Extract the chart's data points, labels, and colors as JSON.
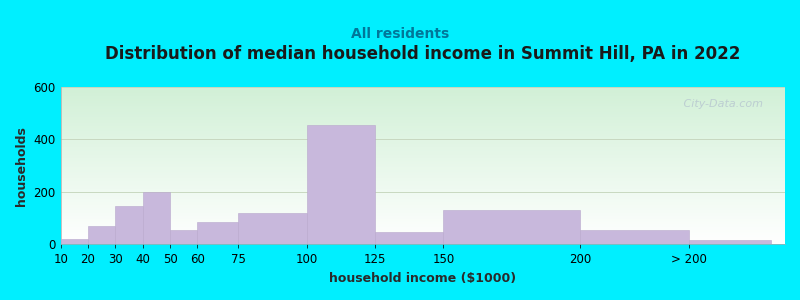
{
  "title": "Distribution of median household income in Summit Hill, PA in 2022",
  "subtitle": "All residents",
  "xlabel": "household income ($1000)",
  "ylabel": "households",
  "background_outer": "#00efff",
  "bar_color": "#c8b8dc",
  "bar_edge_color": "#b8a8cc",
  "yticks": [
    0,
    200,
    400,
    600
  ],
  "ylim": [
    0,
    600
  ],
  "categories": [
    "10",
    "20",
    "30",
    "40",
    "50",
    "60",
    "75",
    "100",
    "125",
    "150",
    "200",
    "> 200"
  ],
  "values": [
    20,
    70,
    145,
    200,
    55,
    85,
    120,
    455,
    48,
    130,
    55,
    18
  ],
  "title_fontsize": 12,
  "subtitle_fontsize": 10,
  "axis_label_fontsize": 9,
  "tick_fontsize": 8.5,
  "watermark": "   City-Data.com"
}
